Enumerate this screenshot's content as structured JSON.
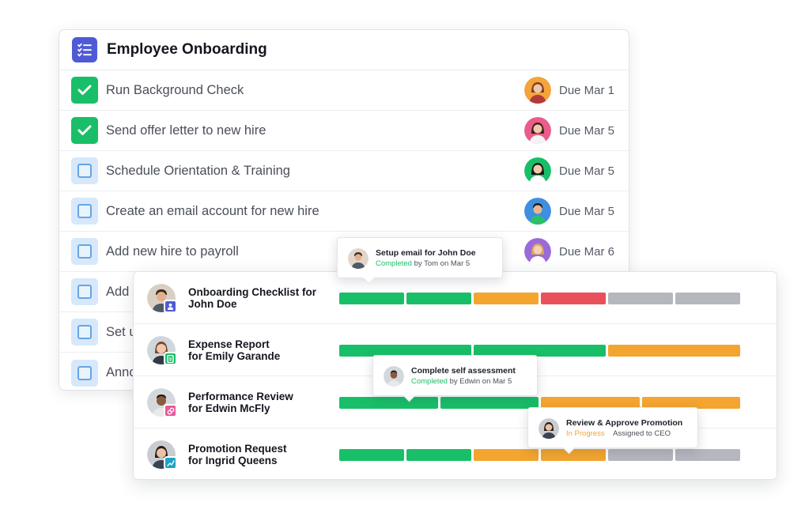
{
  "checklist": {
    "title": "Employee Onboarding",
    "icon": "checklist-icon",
    "items": [
      {
        "label": "Run Background Check",
        "done": true,
        "due": "Due Mar 1",
        "avatar": "woman-orange-bg"
      },
      {
        "label": "Send offer letter to new hire",
        "done": true,
        "due": "Due Mar 5",
        "avatar": "woman-pink-bg"
      },
      {
        "label": "Schedule Orientation & Training",
        "done": false,
        "due": "Due Mar 5",
        "avatar": "woman-green-bg"
      },
      {
        "label": "Create an email account for new hire",
        "done": false,
        "due": "Due Mar 5",
        "avatar": "man-blue-bg"
      },
      {
        "label": "Add new hire to payroll",
        "done": false,
        "due": "Due Mar 6",
        "avatar": "woman-purple-bg"
      },
      {
        "label": "Add",
        "done": false,
        "due": "",
        "avatar": ""
      },
      {
        "label": "Set u",
        "done": false,
        "due": "",
        "avatar": ""
      },
      {
        "label": "Anno",
        "done": false,
        "due": "",
        "avatar": ""
      }
    ]
  },
  "workflows": [
    {
      "line1": "Onboarding Checklist for",
      "line2": "John Doe",
      "badge_color": "#4f5bd5",
      "badge_icon": "user-icon",
      "segments": [
        "green",
        "green",
        "orange",
        "red",
        "gray",
        "gray"
      ]
    },
    {
      "line1": "Expense Report",
      "line2": "for Emily Garande",
      "badge_color": "#19bf68",
      "badge_icon": "receipt-icon",
      "segments": [
        "green",
        "green",
        "orange"
      ]
    },
    {
      "line1": "Performance Review",
      "line2": "for Edwin McFly",
      "badge_color": "#e8589a",
      "badge_icon": "link-icon",
      "segments": [
        "green",
        "green",
        "orange",
        "orange"
      ]
    },
    {
      "line1": "Promotion Request",
      "line2": "for Ingrid Queens",
      "badge_color": "#1fa3c4",
      "badge_icon": "chart-up-icon",
      "segments": [
        "green",
        "green",
        "orange",
        "orange",
        "gray",
        "gray"
      ]
    }
  ],
  "tooltips": [
    {
      "title": "Setup email for John Doe",
      "status": "Completed",
      "detail": "by Tom on Mar 5"
    },
    {
      "title": "Complete self assessment",
      "status": "Completed",
      "detail": "by Edwin on Mar 5"
    },
    {
      "title": "Review & Approve Promotion",
      "status": "In Progress",
      "detail": "Assigned to CEO"
    }
  ],
  "colors": {
    "green": "#19bf68",
    "orange": "#f3a530",
    "red": "#e8505b",
    "gray": "#b4b7bd",
    "accent": "#4f5bd5"
  }
}
